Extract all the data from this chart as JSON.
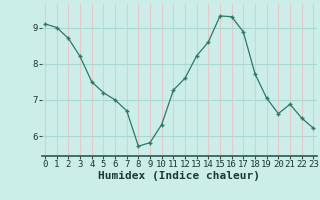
{
  "x": [
    0,
    1,
    2,
    3,
    4,
    5,
    6,
    7,
    8,
    9,
    10,
    11,
    12,
    13,
    14,
    15,
    16,
    17,
    18,
    19,
    20,
    21,
    22,
    23
  ],
  "y": [
    9.1,
    9.0,
    8.7,
    8.2,
    7.5,
    7.2,
    7.0,
    6.7,
    5.72,
    5.82,
    6.32,
    7.27,
    7.6,
    8.22,
    8.6,
    9.32,
    9.3,
    8.88,
    7.72,
    7.05,
    6.62,
    6.88,
    6.5,
    6.22
  ],
  "line_color": "#2a7a6a",
  "marker": "+",
  "bg_color": "#cceee8",
  "plot_bg_color": "#cceee8",
  "grid_v_color": "#e8c8c8",
  "grid_h_color": "#a8d8d0",
  "xlabel": "Humidex (Indice chaleur)",
  "xlabel_fontsize": 8,
  "tick_fontsize": 6.5,
  "yticks": [
    6,
    7,
    8,
    9
  ],
  "xticks": [
    0,
    1,
    2,
    3,
    4,
    5,
    6,
    7,
    8,
    9,
    10,
    11,
    12,
    13,
    14,
    15,
    16,
    17,
    18,
    19,
    20,
    21,
    22,
    23
  ],
  "ylim": [
    5.45,
    9.65
  ],
  "xlim": [
    -0.3,
    23.3
  ]
}
